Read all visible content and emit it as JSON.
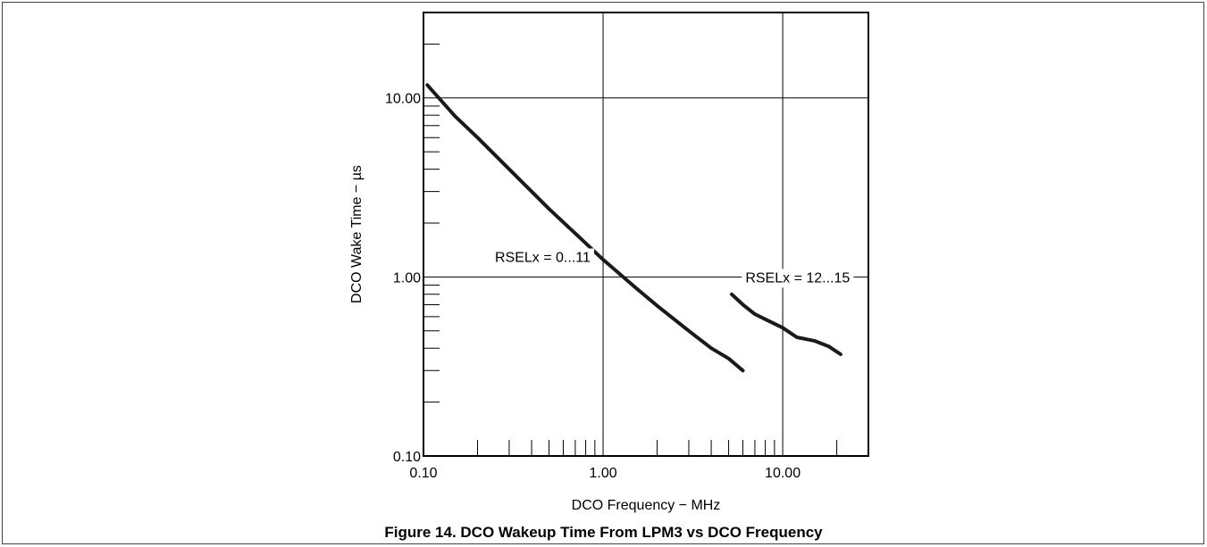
{
  "caption": "Figure 14. DCO Wakeup Time From LPM3 vs DCO Frequency",
  "chart_data": {
    "type": "line",
    "title": "",
    "xlabel": "DCO Frequency − MHz",
    "ylabel": "DCO Wake Time − µs",
    "x_scale": "log",
    "y_scale": "log",
    "xlim": [
      0.1,
      30
    ],
    "ylim": [
      0.1,
      30
    ],
    "x_ticks": [
      {
        "value": 0.1,
        "label": "0.10"
      },
      {
        "value": 1,
        "label": "1.00"
      },
      {
        "value": 10,
        "label": "10.00"
      }
    ],
    "y_ticks": [
      {
        "value": 0.1,
        "label": "0.10"
      },
      {
        "value": 1,
        "label": "1.00"
      },
      {
        "value": 10,
        "label": "10.00"
      }
    ],
    "grid": true,
    "line_color": "#1a1a1a",
    "series": [
      {
        "name": "RSELx = 0...11",
        "x": [
          0.105,
          0.15,
          0.2,
          0.3,
          0.5,
          0.7,
          1.0,
          1.5,
          2.0,
          3.0,
          4.0,
          5.0,
          6.0
        ],
        "y": [
          11.8,
          7.9,
          6.0,
          4.0,
          2.4,
          1.75,
          1.25,
          0.88,
          0.69,
          0.5,
          0.4,
          0.35,
          0.3
        ]
      },
      {
        "name": "RSELx = 12...15",
        "x": [
          5.2,
          6.0,
          7.0,
          8.0,
          10.0,
          12.0,
          15.0,
          18.0,
          21.0
        ],
        "y": [
          0.8,
          0.7,
          0.62,
          0.58,
          0.52,
          0.46,
          0.44,
          0.41,
          0.37
        ]
      }
    ],
    "annotations": [
      {
        "text": "RSELx = 0...11",
        "x": 0.25,
        "y": 1.3
      },
      {
        "text": "RSELx = 12...15",
        "x": 6.2,
        "y": 1.0
      }
    ]
  }
}
